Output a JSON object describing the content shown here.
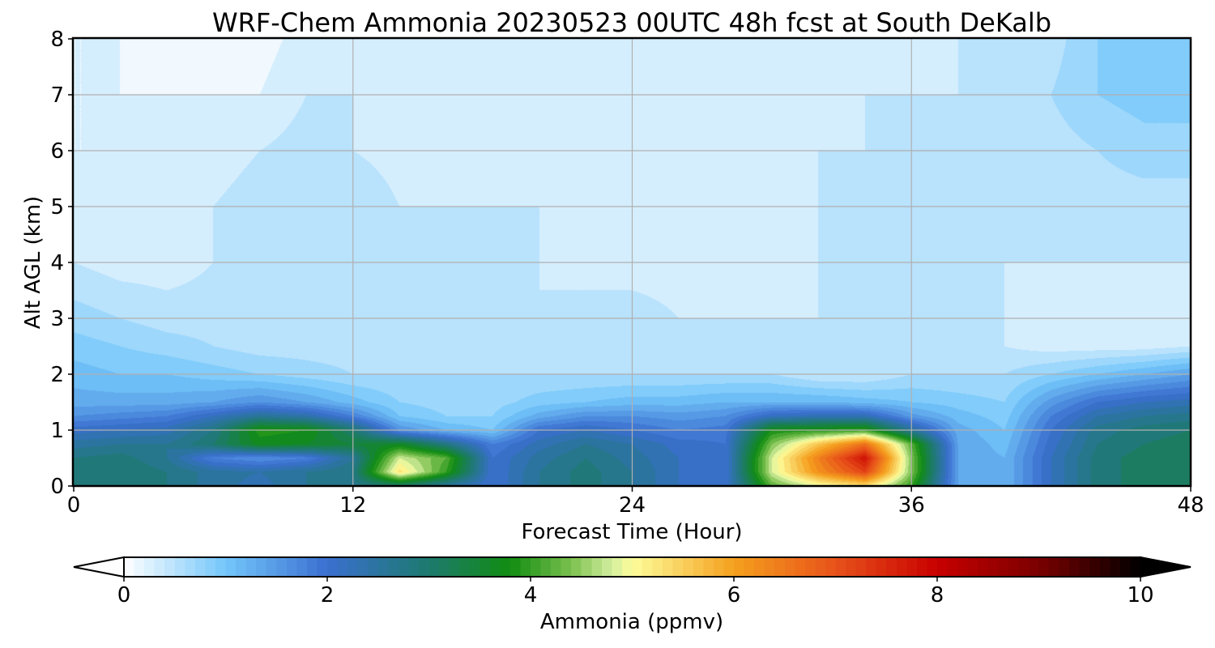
{
  "chart_data": {
    "type": "heatmap",
    "title": "WRF-Chem Ammonia  20230523 00UTC 48h fcst at South DeKalb",
    "xlabel": "Forecast Time (Hour)",
    "ylabel": "Alt AGL (km)",
    "xlim": [
      0,
      48
    ],
    "ylim": [
      0,
      8
    ],
    "xticks": [
      "0",
      "12",
      "24",
      "36",
      "48"
    ],
    "yticks": [
      "0",
      "1",
      "2",
      "3",
      "4",
      "5",
      "6",
      "7",
      "8"
    ],
    "grid": true,
    "x_hours": [
      0,
      2,
      4,
      6,
      8,
      10,
      12,
      14,
      16,
      18,
      20,
      22,
      24,
      26,
      28,
      30,
      32,
      34,
      36,
      38,
      40,
      42,
      44,
      46,
      48
    ],
    "y_km": [
      0,
      0.25,
      0.5,
      0.75,
      1,
      1.25,
      1.5,
      2,
      2.5,
      3,
      4,
      5,
      6,
      7,
      8
    ],
    "z_ppmv": [
      [
        2.9,
        3.0,
        2.8,
        2.5,
        2.3,
        2.6,
        2.7,
        3.0,
        2.5,
        2.0,
        2.6,
        2.9,
        2.6,
        2.2,
        2.0,
        4.2,
        4.9,
        5.3,
        4.0,
        1.4,
        1.2,
        2.2,
        2.9,
        3.1,
        3.2
      ],
      [
        2.9,
        3.0,
        2.8,
        2.5,
        2.4,
        2.6,
        2.8,
        5.3,
        4.0,
        2.0,
        2.6,
        2.9,
        2.6,
        2.2,
        2.0,
        4.8,
        6.2,
        7.2,
        4.4,
        1.4,
        1.2,
        2.2,
        2.9,
        3.1,
        3.2
      ],
      [
        2.8,
        2.9,
        2.6,
        1.8,
        1.6,
        1.8,
        2.6,
        4.8,
        4.2,
        2.0,
        2.5,
        2.8,
        2.5,
        2.2,
        2.0,
        4.8,
        6.4,
        7.8,
        4.4,
        1.4,
        1.2,
        2.2,
        2.9,
        3.1,
        3.2
      ],
      [
        2.5,
        2.6,
        2.6,
        3.0,
        3.7,
        3.6,
        3.4,
        3.6,
        2.8,
        1.8,
        2.3,
        2.6,
        2.4,
        2.1,
        2.0,
        4.4,
        5.6,
        6.6,
        4.2,
        1.4,
        1.1,
        2.1,
        2.8,
        3.0,
        3.1
      ],
      [
        2.1,
        2.2,
        2.3,
        2.8,
        3.9,
        3.8,
        3.0,
        1.6,
        1.2,
        1.0,
        2.0,
        2.2,
        2.0,
        1.8,
        1.9,
        3.8,
        3.9,
        4.0,
        2.6,
        1.3,
        1.0,
        2.0,
        2.7,
        2.9,
        3.0
      ],
      [
        1.6,
        1.7,
        1.8,
        2.2,
        2.6,
        2.4,
        1.8,
        1.0,
        0.8,
        0.8,
        1.3,
        1.6,
        1.6,
        1.5,
        1.6,
        2.2,
        2.3,
        2.3,
        1.5,
        1.1,
        0.9,
        1.8,
        2.4,
        2.6,
        2.7
      ],
      [
        1.3,
        1.3,
        1.3,
        1.4,
        1.6,
        1.4,
        1.1,
        0.8,
        0.7,
        0.7,
        0.9,
        1.0,
        1.1,
        1.1,
        1.2,
        1.2,
        1.2,
        1.1,
        1.0,
        0.9,
        0.8,
        1.5,
        2.0,
        2.2,
        2.3
      ],
      [
        1.1,
        1.0,
        1.0,
        0.9,
        0.8,
        0.7,
        0.6,
        0.6,
        0.6,
        0.6,
        0.6,
        0.6,
        0.6,
        0.6,
        0.6,
        0.6,
        0.4,
        0.4,
        0.6,
        0.6,
        0.6,
        0.8,
        1.0,
        1.2,
        1.4
      ],
      [
        0.9,
        0.8,
        0.7,
        0.6,
        0.5,
        0.5,
        0.5,
        0.5,
        0.5,
        0.5,
        0.5,
        0.5,
        0.4,
        0.5,
        0.5,
        0.5,
        0.5,
        0.5,
        0.5,
        0.5,
        0.4,
        0.3,
        0.3,
        0.3,
        0.4
      ],
      [
        0.7,
        0.6,
        0.5,
        0.5,
        0.5,
        0.6,
        0.6,
        0.5,
        0.5,
        0.5,
        0.4,
        0.5,
        0.5,
        0.4,
        0.4,
        0.4,
        0.4,
        0.4,
        0.4,
        0.4,
        0.4,
        0.3,
        0.3,
        0.3,
        0.3
      ],
      [
        0.4,
        0.3,
        0.3,
        0.4,
        0.5,
        0.6,
        0.6,
        0.5,
        0.4,
        0.4,
        0.4,
        0.3,
        0.3,
        0.3,
        0.2,
        0.3,
        0.4,
        0.4,
        0.4,
        0.4,
        0.4,
        0.4,
        0.4,
        0.4,
        0.4
      ],
      [
        0.3,
        0.3,
        0.3,
        0.4,
        0.5,
        0.6,
        0.6,
        0.4,
        0.4,
        0.4,
        0.4,
        0.3,
        0.3,
        0.3,
        0.2,
        0.3,
        0.4,
        0.4,
        0.4,
        0.4,
        0.5,
        0.5,
        0.5,
        0.5,
        0.5
      ],
      [
        0.2,
        0.2,
        0.3,
        0.3,
        0.4,
        0.5,
        0.4,
        0.3,
        0.3,
        0.3,
        0.3,
        0.3,
        0.3,
        0.3,
        0.3,
        0.3,
        0.4,
        0.4,
        0.4,
        0.4,
        0.4,
        0.5,
        0.6,
        0.7,
        0.7
      ],
      [
        0.2,
        0.2,
        0.2,
        0.2,
        0.2,
        0.4,
        0.4,
        0.2,
        0.3,
        0.3,
        0.2,
        0.2,
        0.3,
        0.3,
        0.3,
        0.3,
        0.3,
        0.4,
        0.4,
        0.4,
        0.4,
        0.6,
        0.8,
        0.9,
        0.9
      ],
      [
        0.2,
        0.2,
        0.1,
        0.1,
        0.1,
        0.3,
        0.3,
        0.3,
        0.3,
        0.2,
        0.2,
        0.2,
        0.3,
        0.3,
        0.3,
        0.3,
        0.3,
        0.3,
        0.3,
        0.4,
        0.4,
        0.5,
        0.8,
        0.9,
        0.8
      ]
    ],
    "colorbar": {
      "label": "Ammonia  (ppmv)",
      "min": 0,
      "max": 10,
      "ticks": [
        "0",
        "2",
        "4",
        "6",
        "8",
        "10"
      ],
      "extend": "both",
      "stops": [
        [
          0,
          "#ffffff"
        ],
        [
          1,
          "#73c6fa"
        ],
        [
          2,
          "#3a6fd0"
        ],
        [
          3,
          "#1d7a6e"
        ],
        [
          3.8,
          "#118c11"
        ],
        [
          4.4,
          "#7bc04e"
        ],
        [
          4.8,
          "#d4ee9f"
        ],
        [
          5.0,
          "#fdfd9a"
        ],
        [
          6.0,
          "#f5a01e"
        ],
        [
          7.0,
          "#e8521a"
        ],
        [
          8.0,
          "#c80000"
        ],
        [
          9.0,
          "#7a0000"
        ],
        [
          10,
          "#000000"
        ]
      ]
    }
  }
}
